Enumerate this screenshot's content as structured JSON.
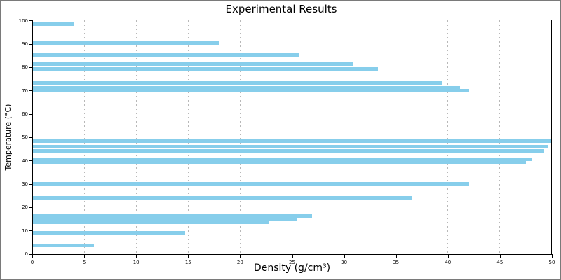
{
  "chart_data": {
    "type": "bar",
    "orientation": "horizontal",
    "title": "Experimental Results",
    "xlabel": "Density (g/cm³)",
    "ylabel": "Temperature (°C)",
    "xlim": [
      0,
      50
    ],
    "ylim": [
      0,
      100.2
    ],
    "x_ticks": [
      0,
      5,
      10,
      15,
      20,
      25,
      30,
      35,
      40,
      45,
      50
    ],
    "y_ticks": [
      0,
      10,
      20,
      30,
      40,
      50,
      60,
      70,
      80,
      90,
      100
    ],
    "grid": "vertical-dotted-gridlines-only",
    "legend": "none",
    "bar_color": "#87ceeb",
    "grid_color": "#b8b8b8",
    "axis_color": "#000000",
    "points": [
      {
        "temperature": 98.3,
        "density": 4.0
      },
      {
        "temperature": 90.3,
        "density": 18.0
      },
      {
        "temperature": 85.3,
        "density": 25.6
      },
      {
        "temperature": 81.3,
        "density": 30.9
      },
      {
        "temperature": 79.2,
        "density": 33.2
      },
      {
        "temperature": 73.3,
        "density": 39.4
      },
      {
        "temperature": 71.0,
        "density": 41.1
      },
      {
        "temperature": 69.9,
        "density": 42.0
      },
      {
        "temperature": 48.2,
        "density": 49.9
      },
      {
        "temperature": 45.9,
        "density": 49.6
      },
      {
        "temperature": 44.0,
        "density": 49.2
      },
      {
        "temperature": 40.5,
        "density": 48.0
      },
      {
        "temperature": 39.2,
        "density": 47.5
      },
      {
        "temperature": 29.9,
        "density": 42.0
      },
      {
        "temperature": 24.1,
        "density": 36.5
      },
      {
        "temperature": 16.2,
        "density": 26.9
      },
      {
        "temperature": 14.9,
        "density": 25.4
      },
      {
        "temperature": 13.4,
        "density": 22.7
      },
      {
        "temperature": 8.9,
        "density": 14.7
      },
      {
        "temperature": 3.5,
        "density": 5.9
      }
    ]
  }
}
